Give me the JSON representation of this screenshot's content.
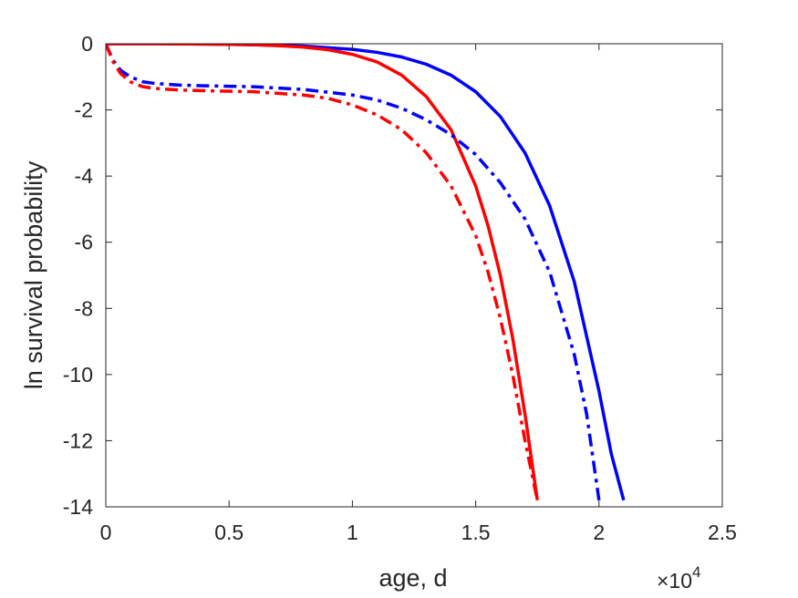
{
  "chart_data": {
    "type": "line",
    "title": "",
    "xlabel": "age, d",
    "ylabel": "ln survival probability",
    "x_exponent_label": {
      "base": "×10",
      "exp": "4"
    },
    "xlim": [
      0,
      25000
    ],
    "ylim": [
      -14,
      0
    ],
    "x_ticks": [
      0,
      5000,
      10000,
      15000,
      20000,
      25000
    ],
    "x_tick_labels": [
      "0",
      "0.5",
      "1",
      "1.5",
      "2",
      "2.5"
    ],
    "y_ticks": [
      0,
      -2,
      -4,
      -6,
      -8,
      -10,
      -12,
      -14
    ],
    "y_tick_labels": [
      "0",
      "-2",
      "-4",
      "-6",
      "-8",
      "-10",
      "-12",
      "-14"
    ],
    "grid": false,
    "legend": "none",
    "axes_color": "#262626",
    "series": [
      {
        "color": "#0000ff",
        "style": "solid",
        "x": [
          0,
          2000,
          4000,
          6000,
          8000,
          10000,
          11000,
          12000,
          13000,
          14000,
          15000,
          16000,
          17000,
          18000,
          19000,
          20000,
          20500,
          21000
        ],
        "y": [
          0,
          0,
          -0.01,
          -0.03,
          -0.07,
          -0.17,
          -0.26,
          -0.4,
          -0.62,
          -0.95,
          -1.45,
          -2.2,
          -3.3,
          -4.9,
          -7.2,
          -10.5,
          -12.4,
          -13.8
        ]
      },
      {
        "color": "#ff0000",
        "style": "solid",
        "x": [
          0,
          2000,
          4000,
          6000,
          7000,
          8000,
          9000,
          10000,
          11000,
          12000,
          13000,
          14000,
          15000,
          15500,
          16000,
          16500,
          17000,
          17500
        ],
        "y": [
          0,
          0,
          -0.01,
          -0.03,
          -0.06,
          -0.1,
          -0.18,
          -0.32,
          -0.55,
          -0.95,
          -1.6,
          -2.6,
          -4.3,
          -5.5,
          -7.0,
          -8.9,
          -11.2,
          -13.8
        ]
      },
      {
        "color": "#0000ff",
        "style": "dashdot",
        "x": [
          0,
          300,
          600,
          1000,
          1500,
          2000,
          3000,
          4000,
          6000,
          8000,
          10000,
          11000,
          12000,
          13000,
          14000,
          15000,
          16000,
          17000,
          18000,
          19000,
          19500,
          20000
        ],
        "y": [
          0,
          -0.5,
          -0.8,
          -1.0,
          -1.15,
          -1.2,
          -1.25,
          -1.27,
          -1.3,
          -1.38,
          -1.55,
          -1.7,
          -1.95,
          -2.3,
          -2.75,
          -3.35,
          -4.2,
          -5.3,
          -6.9,
          -9.4,
          -11.2,
          -13.8
        ]
      },
      {
        "color": "#ff0000",
        "style": "dashdot",
        "x": [
          0,
          300,
          600,
          1000,
          1500,
          2000,
          3000,
          4000,
          6000,
          8000,
          9000,
          10000,
          11000,
          12000,
          13000,
          14000,
          15000,
          15500,
          16000,
          16500,
          17000,
          17500
        ],
        "y": [
          0,
          -0.55,
          -0.9,
          -1.15,
          -1.3,
          -1.35,
          -1.4,
          -1.42,
          -1.45,
          -1.55,
          -1.65,
          -1.85,
          -2.15,
          -2.6,
          -3.3,
          -4.3,
          -5.8,
          -6.9,
          -8.3,
          -10.0,
          -12.0,
          -13.8
        ]
      }
    ]
  }
}
